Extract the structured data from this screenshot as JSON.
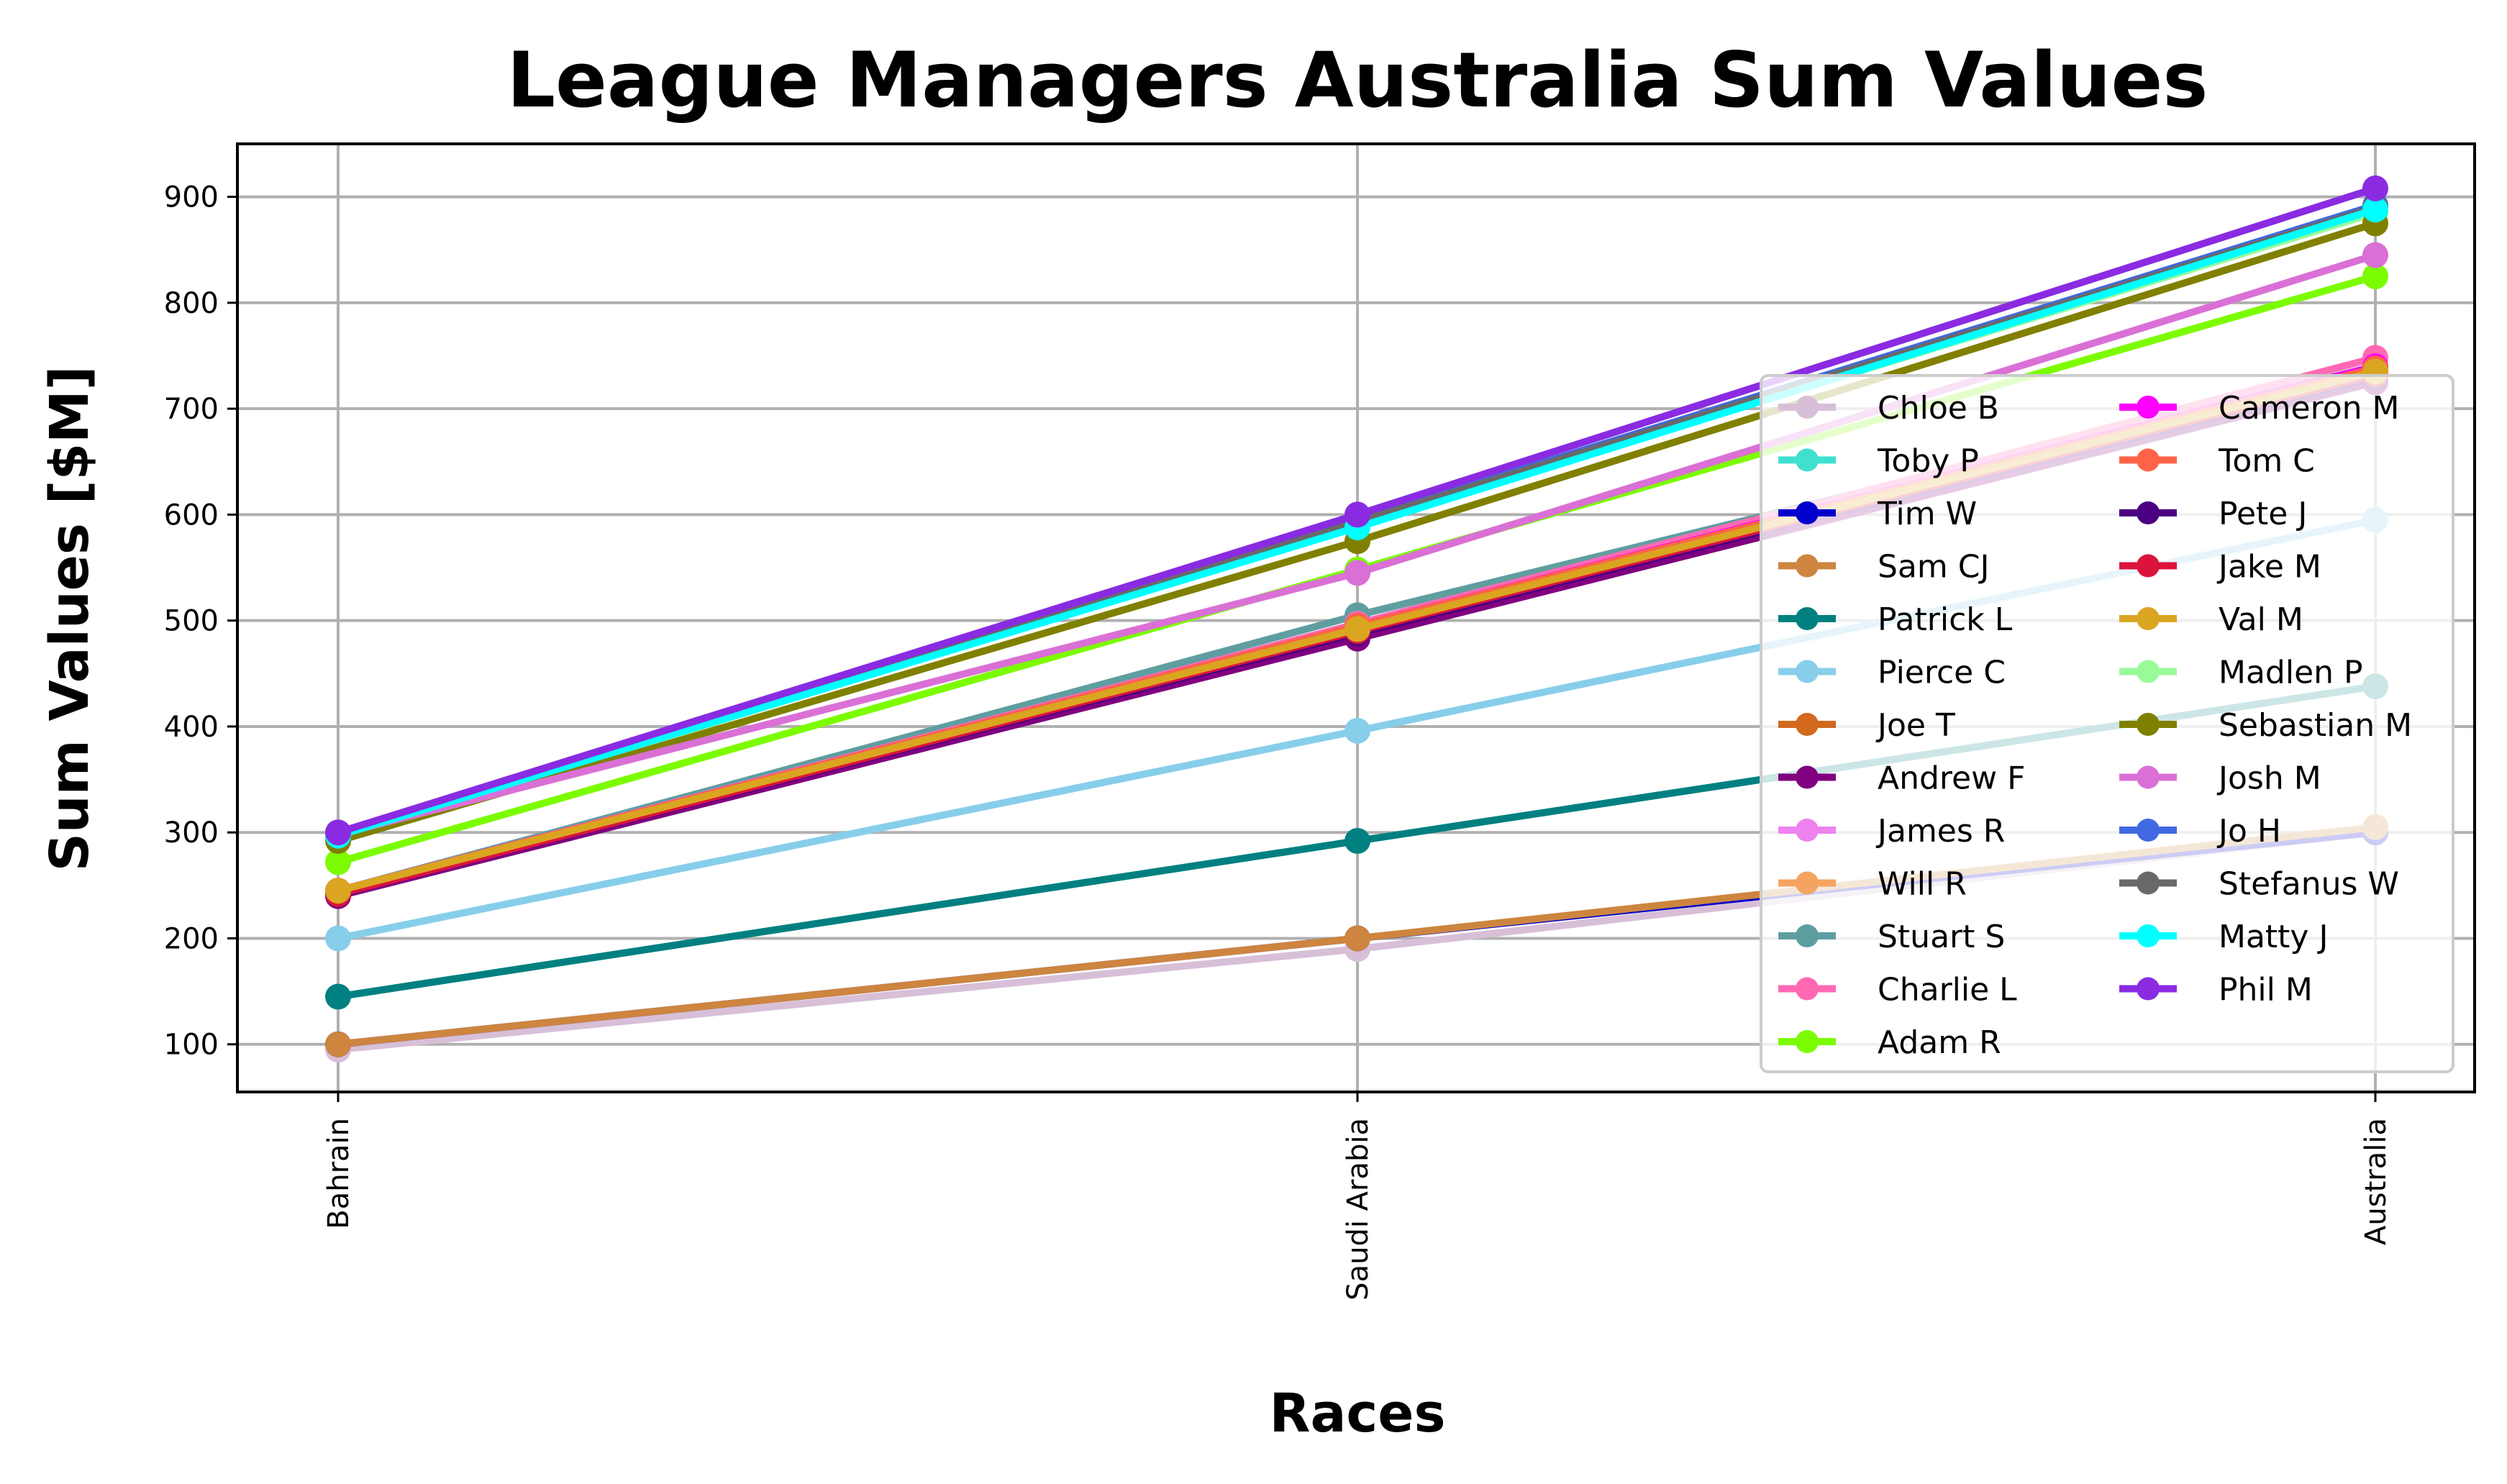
{
  "chart_data": {
    "type": "line",
    "title": "League Managers Australia Sum Values",
    "xlabel": "Races",
    "ylabel": "Sum Values [$M]",
    "categories": [
      "Bahrain",
      "Saudi Arabia",
      "Australia"
    ],
    "ylim": [
      55,
      950
    ],
    "yticks": [
      100,
      200,
      300,
      400,
      500,
      600,
      700,
      800,
      900
    ],
    "grid": true,
    "legend_position": "lower-right",
    "legend_columns": 2,
    "series": [
      {
        "name": "Chloe B",
        "color": "#d8bfd8",
        "values": [
          95,
          190,
          300
        ]
      },
      {
        "name": "Toby P",
        "color": "#40e0d0",
        "values": [
          295,
          590,
          885
        ]
      },
      {
        "name": "Tim W",
        "color": "#0000cd",
        "values": [
          100,
          200,
          300
        ]
      },
      {
        "name": "Sam CJ",
        "color": "#cd853f",
        "values": [
          100,
          200,
          305
        ]
      },
      {
        "name": "Patrick L",
        "color": "#008080",
        "values": [
          145,
          292,
          438
        ]
      },
      {
        "name": "Pierce C",
        "color": "#87ceeb",
        "values": [
          200,
          396,
          595
        ]
      },
      {
        "name": "Joe T",
        "color": "#d2691e",
        "values": [
          240,
          490,
          735
        ]
      },
      {
        "name": "Andrew F",
        "color": "#800080",
        "values": [
          240,
          483,
          725
        ]
      },
      {
        "name": "James R",
        "color": "#ee82ee",
        "values": [
          245,
          490,
          735
        ]
      },
      {
        "name": "Will R",
        "color": "#f4a460",
        "values": [
          245,
          495,
          735
        ]
      },
      {
        "name": "Stuart S",
        "color": "#5f9ea0",
        "values": [
          245,
          505,
          740
        ]
      },
      {
        "name": "Charlie L",
        "color": "#ff69b4",
        "values": [
          245,
          497,
          748
        ]
      },
      {
        "name": "Adam R",
        "color": "#7cfc00",
        "values": [
          272,
          548,
          825
        ]
      },
      {
        "name": "Cameron M",
        "color": "#ff00ff",
        "values": [
          245,
          495,
          740
        ]
      },
      {
        "name": "Tom C",
        "color": "#ff6347",
        "values": [
          245,
          495,
          738
        ]
      },
      {
        "name": "Pete J",
        "color": "#4b0082",
        "values": [
          242,
          488,
          730
        ]
      },
      {
        "name": "Jake M",
        "color": "#dc143c",
        "values": [
          242,
          490,
          732
        ]
      },
      {
        "name": "Val M",
        "color": "#daa520",
        "values": [
          245,
          492,
          735
        ]
      },
      {
        "name": "Madlen P",
        "color": "#98fb98",
        "values": [
          295,
          590,
          885
        ]
      },
      {
        "name": "Sebastian M",
        "color": "#808000",
        "values": [
          292,
          575,
          875
        ]
      },
      {
        "name": "Josh M",
        "color": "#da70d6",
        "values": [
          298,
          545,
          845
        ]
      },
      {
        "name": "Jo H",
        "color": "#4169e1",
        "values": [
          298,
          595,
          892
        ]
      },
      {
        "name": "Stefanus W",
        "color": "#696969",
        "values": [
          297,
          593,
          890
        ]
      },
      {
        "name": "Matty J",
        "color": "#00ffff",
        "values": [
          297,
          588,
          888
        ]
      },
      {
        "name": "Phil M",
        "color": "#8a2be2",
        "values": [
          300,
          600,
          908
        ]
      }
    ]
  }
}
